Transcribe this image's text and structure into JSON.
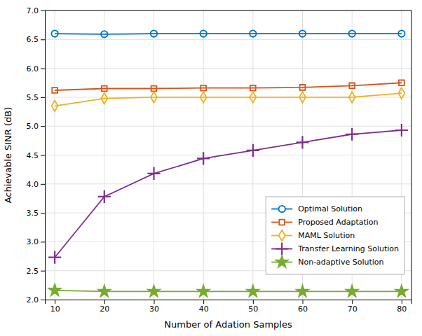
{
  "chart_data": {
    "type": "line",
    "xlabel": "Number of Adation Samples",
    "ylabel": "Achievable SINR (dB)",
    "x": [
      10,
      20,
      30,
      40,
      50,
      60,
      70,
      80
    ],
    "series": [
      {
        "name": "Optimal Solution",
        "color": "#0072BD",
        "marker": "circle",
        "values": [
          6.6,
          6.59,
          6.6,
          6.6,
          6.6,
          6.6,
          6.6,
          6.6
        ]
      },
      {
        "name": "Proposed Adaptation",
        "color": "#D95319",
        "marker": "square",
        "values": [
          5.62,
          5.65,
          5.65,
          5.66,
          5.66,
          5.67,
          5.7,
          5.75
        ]
      },
      {
        "name": "MAML Solution",
        "color": "#EDB120",
        "marker": "diamond",
        "values": [
          5.35,
          5.48,
          5.5,
          5.5,
          5.5,
          5.5,
          5.5,
          5.57
        ]
      },
      {
        "name": "Transfer Learning Solution",
        "color": "#7E2F8E",
        "marker": "plus",
        "values": [
          2.73,
          3.78,
          4.18,
          4.44,
          4.58,
          4.72,
          4.86,
          4.93
        ]
      },
      {
        "name": "Non-adaptive Solution",
        "color": "#77AC30",
        "marker": "star",
        "values": [
          2.16,
          2.14,
          2.14,
          2.14,
          2.14,
          2.14,
          2.14,
          2.14
        ]
      }
    ],
    "xlim": [
      8,
      82
    ],
    "ylim": [
      2.0,
      7.0
    ],
    "xticks": [
      10,
      20,
      30,
      40,
      50,
      60,
      70,
      80
    ],
    "yticks": [
      {
        "value": 2.0,
        "label": "2.0"
      },
      2.5,
      {
        "value": 3.0,
        "label": "3.0"
      },
      3.5,
      {
        "value": 4.0,
        "label": "4.0"
      },
      4.5,
      {
        "value": 5.0,
        "label": "5.0"
      },
      5.5,
      {
        "value": 6.0,
        "label": "6.0"
      },
      6.5,
      {
        "value": 7.0,
        "label": "7.0"
      }
    ],
    "grid": true,
    "legend": "lower right"
  }
}
